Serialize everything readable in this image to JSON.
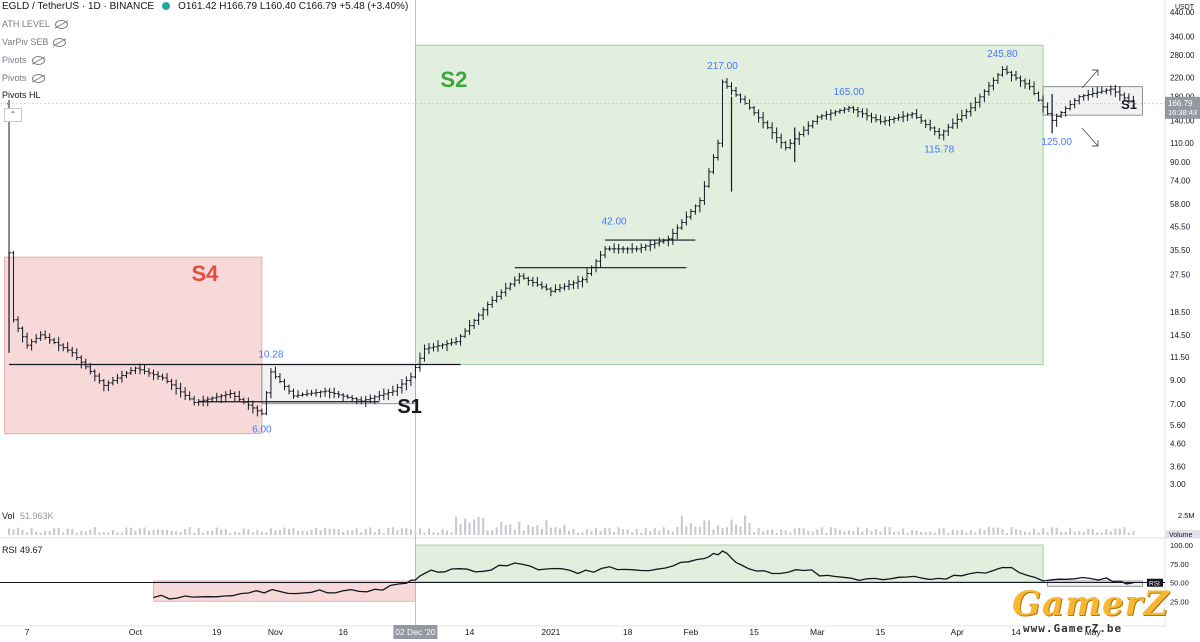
{
  "header": {
    "symbol": "EGLD / TetherUS · 1D · BINANCE",
    "ohlc": "O161.42 H166.79 L160.40 C166.79 +5.48 (+3.40%)"
  },
  "indicators": [
    {
      "label": "ATH LEVEL"
    },
    {
      "label": "VarPiv SEB"
    },
    {
      "label": "Pivots"
    },
    {
      "label": "Pivots"
    }
  ],
  "pivots_hl": "Pivots HL",
  "collapse_glyph": "⌃",
  "price_axis": {
    "currency": "USDT",
    "ticks": [
      "440.00",
      "340.00",
      "280.00",
      "220.00",
      "180.00",
      "140.00",
      "110.00",
      "90.00",
      "74.00",
      "58.00",
      "45.50",
      "35.50",
      "27.50",
      "18.50",
      "14.50",
      "11.50",
      "9.00",
      "7.00",
      "5.60",
      "4.60",
      "3.60",
      "3.00"
    ],
    "last_price": "166.79",
    "countdown": "16:38:43"
  },
  "time_axis": [
    "7",
    "Oct",
    "19",
    "Nov",
    "16",
    "02 Dec '20",
    "14",
    "2021",
    "18",
    "Feb",
    "15",
    "Mar",
    "15",
    "Apr",
    "14",
    "May"
  ],
  "chart_data": {
    "type": "candlestick",
    "scale": "log",
    "ylim": [
      2.4,
      500
    ],
    "price_path": [
      {
        "x": "2020-09-03",
        "y": 34.5
      },
      {
        "x": "2020-09-04",
        "y": 17.0
      },
      {
        "x": "2020-09-07",
        "y": 13.0
      },
      {
        "x": "2020-09-10",
        "y": 14.5
      },
      {
        "x": "2020-09-17",
        "y": 12.0
      },
      {
        "x": "2020-09-24",
        "y": 8.5
      },
      {
        "x": "2020-10-01",
        "y": 10.2
      },
      {
        "x": "2020-10-07",
        "y": 9.2
      },
      {
        "x": "2020-10-14",
        "y": 7.1
      },
      {
        "x": "2020-10-22",
        "y": 7.8
      },
      {
        "x": "2020-10-29",
        "y": 6.3
      },
      {
        "x": "2020-10-31",
        "y": 9.8
      },
      {
        "x": "2020-11-05",
        "y": 7.6
      },
      {
        "x": "2020-11-12",
        "y": 8.0
      },
      {
        "x": "2020-11-20",
        "y": 7.2
      },
      {
        "x": "2020-11-27",
        "y": 8.0
      },
      {
        "x": "2020-12-01",
        "y": 9.3
      },
      {
        "x": "2020-12-04",
        "y": 12.5
      },
      {
        "x": "2020-12-11",
        "y": 13.5
      },
      {
        "x": "2020-12-18",
        "y": 20.0
      },
      {
        "x": "2020-12-25",
        "y": 27.0
      },
      {
        "x": "2021-01-01",
        "y": 23.0
      },
      {
        "x": "2021-01-08",
        "y": 26.0
      },
      {
        "x": "2021-01-13",
        "y": 36.0
      },
      {
        "x": "2021-01-20",
        "y": 36.0
      },
      {
        "x": "2021-01-27",
        "y": 40.0
      },
      {
        "x": "2021-02-03",
        "y": 60.0
      },
      {
        "x": "2021-02-07",
        "y": 110.0
      },
      {
        "x": "2021-02-08",
        "y": 210.0
      },
      {
        "x": "2021-02-14",
        "y": 160.0
      },
      {
        "x": "2021-02-22",
        "y": 105.0
      },
      {
        "x": "2021-03-01",
        "y": 145.0
      },
      {
        "x": "2021-03-08",
        "y": 160.0
      },
      {
        "x": "2021-03-15",
        "y": 138.0
      },
      {
        "x": "2021-03-22",
        "y": 150.0
      },
      {
        "x": "2021-03-28",
        "y": 120.0
      },
      {
        "x": "2021-04-04",
        "y": 160.0
      },
      {
        "x": "2021-04-11",
        "y": 240.0
      },
      {
        "x": "2021-04-17",
        "y": 200.0
      },
      {
        "x": "2021-04-22",
        "y": 140.0
      },
      {
        "x": "2021-04-28",
        "y": 180.0
      },
      {
        "x": "2021-05-05",
        "y": 195.0
      },
      {
        "x": "2021-05-10",
        "y": 166.79
      }
    ],
    "annotations": [
      {
        "text": "10.28",
        "x": "2020-10-31",
        "price": 10.28
      },
      {
        "text": "6.00",
        "x": "2020-10-29",
        "price": 6.0
      },
      {
        "text": "42.00",
        "x": "2021-01-15",
        "price": 42.0
      },
      {
        "text": "217.00",
        "x": "2021-02-08",
        "price": 217.0
      },
      {
        "text": "165.00",
        "x": "2021-03-08",
        "price": 165.0
      },
      {
        "text": "115.78",
        "x": "2021-03-28",
        "price": 115.78
      },
      {
        "text": "245.80",
        "x": "2021-04-11",
        "price": 245.8
      },
      {
        "text": "125.00",
        "x": "2021-04-23",
        "price": 125.0
      }
    ],
    "zones": [
      {
        "label": "S4",
        "color": "#f4cccc",
        "x0": "2020-09-02",
        "x1": "2020-10-29",
        "y0": 5.1,
        "y1": 33.0
      },
      {
        "label": "S2",
        "color": "#d9ead3",
        "x0": "2020-12-02",
        "x1": "2021-04-20",
        "y0": 10.6,
        "y1": 310.0
      },
      {
        "label": "S1",
        "color": "#eeeeee",
        "x0": "2020-10-29",
        "x1": "2020-12-02",
        "y0": 7.0,
        "y1": 10.6
      },
      {
        "label": "S1",
        "color": "#eeeeee",
        "x0": "2021-04-20",
        "x1": "2021-05-12",
        "y0": 148.0,
        "y1": 200.0
      }
    ],
    "levels": [
      {
        "price": 10.6,
        "x0": "2020-09-03",
        "x1": "2020-12-12"
      },
      {
        "price": 7.15,
        "x0": "2020-10-15",
        "x1": "2020-11-24"
      },
      {
        "price": 29.5,
        "x0": "2020-12-24",
        "x1": "2021-01-31"
      },
      {
        "price": 39.5,
        "x0": "2021-01-13",
        "x1": "2021-02-02"
      }
    ],
    "volume": {
      "label": "Vol",
      "value": "51.963K",
      "axis_ticks": [
        "2.5M",
        "Volume"
      ]
    },
    "rsi": {
      "label": "RSI",
      "value": "49.67",
      "ylim": [
        0,
        100
      ],
      "axis_ticks": [
        "100.00",
        "75.00",
        "50.00",
        "25.00"
      ],
      "last_badge": "RSI",
      "series": [
        {
          "x": "2020-10-05",
          "y": 30.0
        },
        {
          "x": "2020-10-12",
          "y": 32.0
        },
        {
          "x": "2020-10-19",
          "y": 31.0
        },
        {
          "x": "2020-10-26",
          "y": 36.0
        },
        {
          "x": "2020-11-02",
          "y": 38.0
        },
        {
          "x": "2020-11-09",
          "y": 37.0
        },
        {
          "x": "2020-11-16",
          "y": 39.0
        },
        {
          "x": "2020-11-23",
          "y": 41.0
        },
        {
          "x": "2020-11-30",
          "y": 49.0
        },
        {
          "x": "2020-12-04",
          "y": 62.0
        },
        {
          "x": "2020-12-10",
          "y": 68.0
        },
        {
          "x": "2020-12-17",
          "y": 65.0
        },
        {
          "x": "2020-12-24",
          "y": 76.0
        },
        {
          "x": "2020-12-31",
          "y": 68.0
        },
        {
          "x": "2021-01-07",
          "y": 62.0
        },
        {
          "x": "2021-01-14",
          "y": 71.0
        },
        {
          "x": "2021-01-21",
          "y": 66.0
        },
        {
          "x": "2021-01-28",
          "y": 72.0
        },
        {
          "x": "2021-02-04",
          "y": 82.0
        },
        {
          "x": "2021-02-08",
          "y": 92.0
        },
        {
          "x": "2021-02-12",
          "y": 74.0
        },
        {
          "x": "2021-02-19",
          "y": 62.0
        },
        {
          "x": "2021-02-26",
          "y": 66.0
        },
        {
          "x": "2021-03-05",
          "y": 58.0
        },
        {
          "x": "2021-03-12",
          "y": 55.0
        },
        {
          "x": "2021-03-19",
          "y": 57.0
        },
        {
          "x": "2021-03-26",
          "y": 54.0
        },
        {
          "x": "2021-04-02",
          "y": 59.0
        },
        {
          "x": "2021-04-09",
          "y": 66.0
        },
        {
          "x": "2021-04-13",
          "y": 70.0
        },
        {
          "x": "2021-04-20",
          "y": 52.0
        },
        {
          "x": "2021-04-27",
          "y": 55.0
        },
        {
          "x": "2021-05-04",
          "y": 56.0
        },
        {
          "x": "2021-05-10",
          "y": 49.67
        }
      ],
      "zones": [
        {
          "color": "#f4cccc",
          "x0": "2020-10-05",
          "x1": "2020-12-02",
          "y0": 25.0,
          "y1": 52.0
        },
        {
          "color": "#d9ead3",
          "x0": "2020-12-02",
          "x1": "2021-04-20",
          "y0": 51.0,
          "y1": 100.0
        }
      ]
    }
  },
  "watermark": {
    "brand": "GamerZ",
    "url": "www.GamerZ.be"
  }
}
